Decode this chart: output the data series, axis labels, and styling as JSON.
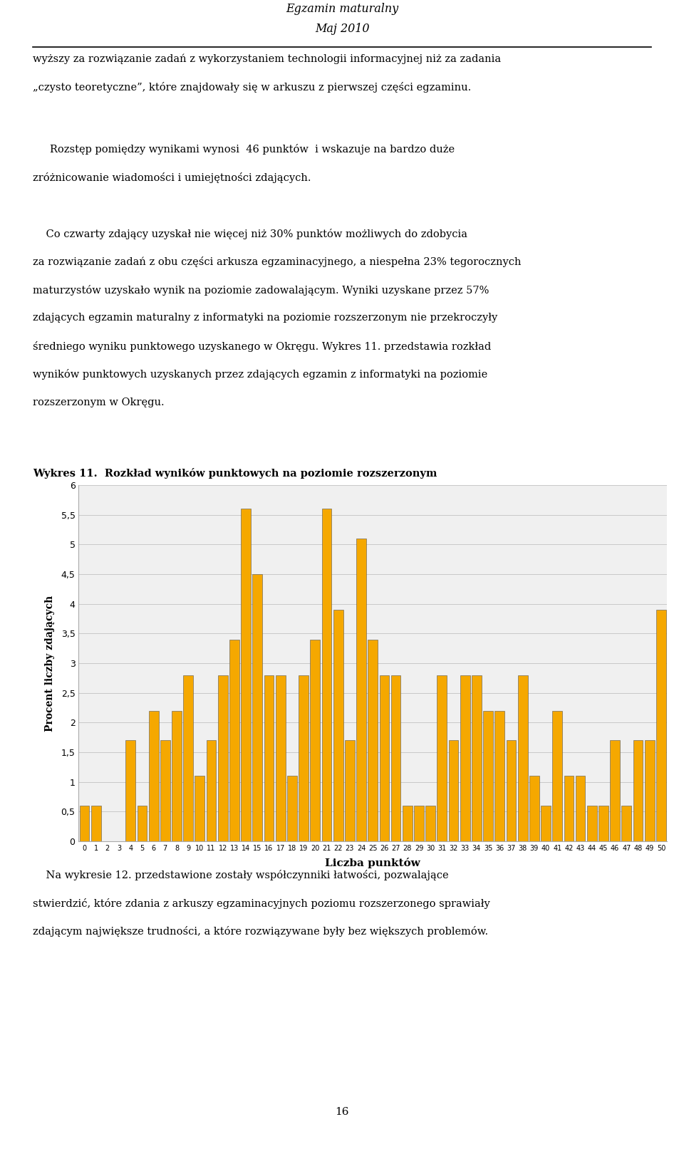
{
  "title_line1": "Egzamin maturalny",
  "title_line2": "Maj 2010",
  "chart_title": "Wykres 11.  Rozkład wyników punktowych na poziomie rozszerzonym",
  "xlabel": "Liczba punktów",
  "ylabel": "Procent liczby zdających",
  "ylim": [
    0,
    6
  ],
  "yticks": [
    0,
    0.5,
    1,
    1.5,
    2,
    2.5,
    3,
    3.5,
    4,
    4.5,
    5,
    5.5,
    6
  ],
  "bar_color": "#F5A800",
  "bar_edge_color": "#555555",
  "values": [
    0.6,
    0.6,
    0.0,
    0.0,
    1.7,
    0.6,
    2.2,
    1.7,
    2.2,
    2.8,
    1.1,
    1.7,
    2.8,
    3.4,
    5.6,
    4.5,
    2.8,
    2.8,
    1.1,
    2.8,
    3.4,
    5.6,
    3.9,
    1.7,
    5.1,
    3.4,
    2.8,
    2.8,
    0.6,
    0.6,
    0.6,
    2.8,
    1.7,
    2.8,
    2.8,
    2.2,
    2.2,
    1.7,
    2.8,
    1.1,
    0.6,
    2.2,
    1.1,
    1.1,
    0.6,
    0.6,
    1.7,
    0.6,
    1.7,
    1.7,
    3.9
  ],
  "page_number": "16",
  "background_color": "#ffffff",
  "text_color": "#000000",
  "grid_color": "#c8c8c8",
  "body_text_line1": "wyższy za rozwiązanie zadań z wykorzystaniem technologii informacyjnej niż za zadania",
  "body_text_line2": "„czysto teoretyczne”, które znajdowały się w arkuszu z pierwszej części egzaminu.",
  "body_para2_line1": "Rozstęp pomiędzy wynikami wynosi 46 punktów i wskazuje na bardzo duże",
  "body_para2_line2": "zróżnicowanie wiadomości i umiejętności zdających.",
  "body_para3": "Co czwarty zdający uzyskał nie więcej niż 30% punktów możliwych do zdobycia za rozwiązanie zadań z obu części arkusza egzaminacyjnego, a niespłena 23% tegorocznych maturzystów uzyskało wynik na poziomie zadowalającym. Wyniki uzyskane przez 57% zdających egzamin maturalny z informatyki na poziomie rozszerzonym nie przekroczyły średniego wyniku punktowego uzyskanego w Okręgu. Wykres 11. przedstawia rozkład wyników punktowych uzyskanych przez zdających egzamin z informatyki na poziomie rozszerzonym w Okręgu.",
  "footer_para": "Na wykresie 12. przedstawione zostały współczynniki łatwości, pozwalające stwierdzić, które zdania z arkuszy egzaminacyjnych poziomu rozszerzonego sprawiały zdającym największe trudności, a które rozwiązywane były bez większych problemów."
}
